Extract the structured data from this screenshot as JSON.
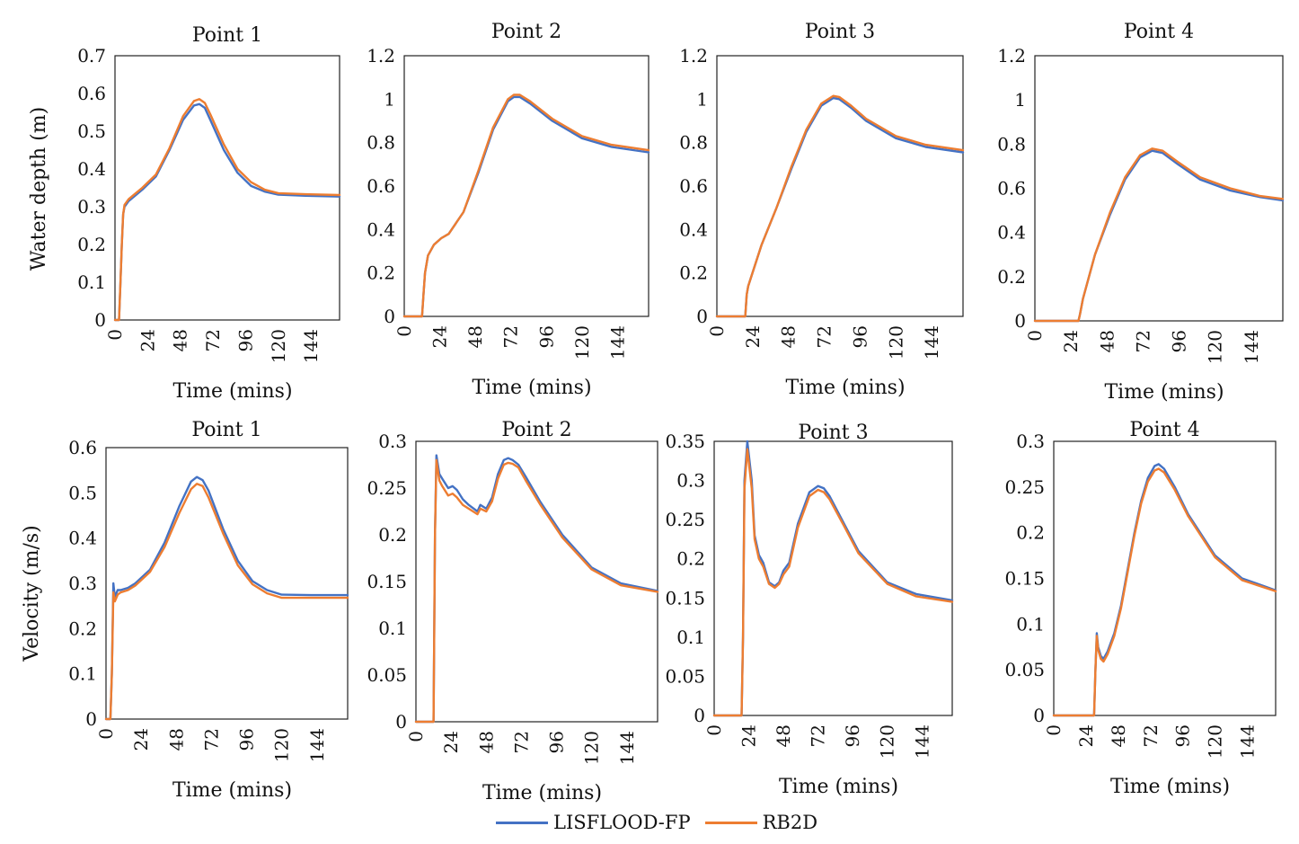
{
  "colors": {
    "lisflood": "#4472C4",
    "rb2d": "#ED7D31"
  },
  "legend": [
    {
      "name": "LISFLOOD-FP",
      "color": "#4472C4"
    },
    {
      "name": "RB2D",
      "color": "#ED7D31"
    }
  ],
  "row_labels": {
    "top": "Water depth (m)",
    "bottom": "Velocity (m/s)"
  },
  "chart_data": [
    {
      "type": "line",
      "title": "Point 1",
      "xlabel": "Time (mins)",
      "ylabel": "Water depth (m)",
      "xticks": [
        0,
        24,
        48,
        72,
        96,
        120,
        144
      ],
      "xlim": [
        0,
        165
      ],
      "yticks": [
        0,
        0.1,
        0.2,
        0.3,
        0.4,
        0.5,
        0.6,
        0.7
      ],
      "ytick_labels": [
        "0",
        "0.1",
        "0.2",
        "0.3",
        "0.4",
        "0.5",
        "0.6",
        "0.7"
      ],
      "ylim": [
        0,
        0.7
      ],
      "series": [
        {
          "name": "LISFLOOD-FP",
          "x": [
            0,
            3,
            4,
            5,
            6,
            7,
            10,
            15,
            20,
            30,
            40,
            50,
            58,
            62,
            66,
            70,
            80,
            90,
            100,
            110,
            120,
            140,
            165
          ],
          "y": [
            0,
            0,
            0.1,
            0.2,
            0.28,
            0.3,
            0.315,
            0.33,
            0.345,
            0.38,
            0.45,
            0.53,
            0.568,
            0.572,
            0.562,
            0.53,
            0.45,
            0.39,
            0.355,
            0.34,
            0.332,
            0.329,
            0.327
          ]
        },
        {
          "name": "RB2D",
          "x": [
            0,
            3,
            4,
            5,
            6,
            7,
            10,
            15,
            20,
            30,
            40,
            50,
            58,
            62,
            66,
            70,
            80,
            90,
            100,
            110,
            120,
            140,
            165
          ],
          "y": [
            0,
            0,
            0.1,
            0.2,
            0.28,
            0.305,
            0.32,
            0.335,
            0.35,
            0.385,
            0.455,
            0.54,
            0.58,
            0.585,
            0.575,
            0.545,
            0.465,
            0.4,
            0.365,
            0.345,
            0.336,
            0.333,
            0.331
          ]
        }
      ]
    },
    {
      "type": "line",
      "title": "Point 2",
      "xlabel": "Time (mins)",
      "ylabel": "",
      "xticks": [
        0,
        24,
        48,
        72,
        96,
        120,
        144
      ],
      "xlim": [
        0,
        165
      ],
      "yticks": [
        0,
        0.2,
        0.4,
        0.6,
        0.8,
        1,
        1.2
      ],
      "ytick_labels": [
        "0",
        "0.2",
        "0.4",
        "0.6",
        "0.8",
        "1",
        "1.2"
      ],
      "ylim": [
        0,
        1.2
      ],
      "series": [
        {
          "name": "LISFLOOD-FP",
          "x": [
            0,
            12,
            13,
            14,
            16,
            20,
            25,
            30,
            40,
            50,
            60,
            70,
            74,
            78,
            85,
            100,
            120,
            140,
            165
          ],
          "y": [
            0,
            0,
            0.1,
            0.2,
            0.28,
            0.33,
            0.36,
            0.38,
            0.48,
            0.66,
            0.86,
            0.99,
            1.01,
            1.01,
            0.98,
            0.9,
            0.82,
            0.78,
            0.755
          ]
        },
        {
          "name": "RB2D",
          "x": [
            0,
            12,
            13,
            14,
            16,
            20,
            25,
            30,
            40,
            50,
            60,
            70,
            74,
            78,
            85,
            100,
            120,
            140,
            165
          ],
          "y": [
            0,
            0,
            0.1,
            0.2,
            0.28,
            0.33,
            0.36,
            0.38,
            0.48,
            0.67,
            0.87,
            1.0,
            1.02,
            1.02,
            0.99,
            0.91,
            0.83,
            0.79,
            0.765
          ]
        }
      ]
    },
    {
      "type": "line",
      "title": "Point 3",
      "xlabel": "Time (mins)",
      "ylabel": "",
      "xticks": [
        0,
        24,
        48,
        72,
        96,
        120,
        144
      ],
      "xlim": [
        0,
        165
      ],
      "yticks": [
        0,
        0.2,
        0.4,
        0.6,
        0.8,
        1,
        1.2
      ],
      "ytick_labels": [
        "0",
        "0.2",
        "0.4",
        "0.6",
        "0.8",
        "1",
        "1.2"
      ],
      "ylim": [
        0,
        1.2
      ],
      "series": [
        {
          "name": "LISFLOOD-FP",
          "x": [
            0,
            19,
            20,
            21,
            30,
            40,
            50,
            60,
            70,
            78,
            82,
            90,
            100,
            120,
            140,
            165
          ],
          "y": [
            0,
            0,
            0.1,
            0.14,
            0.33,
            0.5,
            0.68,
            0.85,
            0.97,
            1.005,
            1.0,
            0.96,
            0.9,
            0.82,
            0.78,
            0.755
          ]
        },
        {
          "name": "RB2D",
          "x": [
            0,
            19,
            20,
            21,
            30,
            40,
            50,
            60,
            70,
            78,
            82,
            90,
            100,
            120,
            140,
            165
          ],
          "y": [
            0,
            0,
            0.1,
            0.14,
            0.33,
            0.5,
            0.69,
            0.86,
            0.98,
            1.015,
            1.01,
            0.97,
            0.91,
            0.83,
            0.79,
            0.765
          ]
        }
      ]
    },
    {
      "type": "line",
      "title": "Point 4",
      "xlabel": "Time (mins)",
      "ylabel": "",
      "xticks": [
        0,
        24,
        48,
        72,
        96,
        120,
        144
      ],
      "xlim": [
        0,
        165
      ],
      "yticks": [
        0,
        0.2,
        0.4,
        0.6,
        0.8,
        1,
        1.2
      ],
      "ytick_labels": [
        "0",
        "0.2",
        "0.4",
        "0.6",
        "0.8",
        "1",
        "1.2"
      ],
      "ylim": [
        0,
        1.2
      ],
      "series": [
        {
          "name": "LISFLOOD-FP",
          "x": [
            0,
            29,
            30,
            32,
            40,
            50,
            60,
            70,
            78,
            85,
            95,
            110,
            130,
            150,
            165
          ],
          "y": [
            0,
            0,
            0.03,
            0.1,
            0.3,
            0.48,
            0.64,
            0.74,
            0.77,
            0.76,
            0.71,
            0.64,
            0.59,
            0.56,
            0.545
          ]
        },
        {
          "name": "RB2D",
          "x": [
            0,
            29,
            30,
            32,
            40,
            50,
            60,
            70,
            78,
            85,
            95,
            110,
            130,
            150,
            165
          ],
          "y": [
            0,
            0,
            0.03,
            0.1,
            0.3,
            0.49,
            0.65,
            0.75,
            0.78,
            0.77,
            0.72,
            0.65,
            0.6,
            0.565,
            0.552
          ]
        }
      ]
    },
    {
      "type": "line",
      "title": "Point 1",
      "xlabel": "Time (mins)",
      "ylabel": "Velocity (m/s)",
      "xticks": [
        0,
        24,
        48,
        72,
        96,
        120,
        144
      ],
      "xlim": [
        0,
        165
      ],
      "yticks": [
        0,
        0.1,
        0.2,
        0.3,
        0.4,
        0.5,
        0.6
      ],
      "ytick_labels": [
        "0",
        "0.1",
        "0.2",
        "0.3",
        "0.4",
        "0.5",
        "0.6"
      ],
      "ylim": [
        0,
        0.6
      ],
      "series": [
        {
          "name": "LISFLOOD-FP",
          "x": [
            0,
            3,
            4,
            5,
            6,
            8,
            10,
            15,
            20,
            30,
            40,
            50,
            58,
            62,
            66,
            70,
            80,
            90,
            100,
            110,
            120,
            140,
            165
          ],
          "y": [
            0,
            0,
            0.1,
            0.3,
            0.27,
            0.285,
            0.285,
            0.29,
            0.3,
            0.33,
            0.39,
            0.47,
            0.525,
            0.535,
            0.528,
            0.505,
            0.42,
            0.35,
            0.305,
            0.285,
            0.275,
            0.274,
            0.274
          ]
        },
        {
          "name": "RB2D",
          "x": [
            0,
            3,
            4,
            5,
            6,
            8,
            10,
            15,
            20,
            30,
            40,
            50,
            58,
            62,
            66,
            70,
            80,
            90,
            100,
            110,
            120,
            140,
            165
          ],
          "y": [
            0,
            0,
            0.1,
            0.28,
            0.26,
            0.275,
            0.28,
            0.285,
            0.295,
            0.325,
            0.38,
            0.455,
            0.508,
            0.52,
            0.515,
            0.49,
            0.41,
            0.34,
            0.298,
            0.278,
            0.268,
            0.268,
            0.268
          ]
        }
      ]
    },
    {
      "type": "line",
      "title": "Point 2",
      "xlabel": "Time (mins)",
      "ylabel": "",
      "xticks": [
        0,
        24,
        48,
        72,
        96,
        120,
        144
      ],
      "xlim": [
        0,
        165
      ],
      "yticks": [
        0,
        0.05,
        0.1,
        0.15,
        0.2,
        0.25,
        0.3
      ],
      "ytick_labels": [
        "0",
        "0.05",
        "0.1",
        "0.15",
        "0.2",
        "0.25",
        "0.3"
      ],
      "ylim": [
        0,
        0.3
      ],
      "series": [
        {
          "name": "LISFLOOD-FP",
          "x": [
            0,
            12,
            13,
            14,
            16,
            18,
            22,
            25,
            28,
            32,
            36,
            42,
            44,
            48,
            52,
            56,
            60,
            63,
            66,
            70,
            75,
            85,
            100,
            120,
            140,
            165
          ],
          "y": [
            0,
            0,
            0.2,
            0.285,
            0.265,
            0.26,
            0.25,
            0.252,
            0.248,
            0.238,
            0.232,
            0.225,
            0.232,
            0.228,
            0.24,
            0.265,
            0.28,
            0.282,
            0.28,
            0.275,
            0.262,
            0.235,
            0.2,
            0.165,
            0.148,
            0.14
          ]
        },
        {
          "name": "RB2D",
          "x": [
            0,
            12,
            13,
            14,
            16,
            18,
            22,
            25,
            28,
            32,
            36,
            42,
            44,
            48,
            52,
            56,
            60,
            63,
            66,
            70,
            75,
            85,
            100,
            120,
            140,
            165
          ],
          "y": [
            0,
            0,
            0.2,
            0.28,
            0.258,
            0.252,
            0.242,
            0.244,
            0.24,
            0.232,
            0.228,
            0.222,
            0.228,
            0.225,
            0.236,
            0.26,
            0.275,
            0.277,
            0.276,
            0.272,
            0.258,
            0.232,
            0.197,
            0.163,
            0.146,
            0.139
          ]
        }
      ]
    },
    {
      "type": "line",
      "title": "Point 3",
      "xlabel": "Time (mins)",
      "ylabel": "",
      "xticks": [
        0,
        24,
        48,
        72,
        96,
        120,
        144
      ],
      "xlim": [
        0,
        165
      ],
      "yticks": [
        0,
        0.05,
        0.1,
        0.15,
        0.2,
        0.25,
        0.3,
        0.35
      ],
      "ytick_labels": [
        "0",
        "0.05",
        "0.1",
        "0.15",
        "0.2",
        "0.25",
        "0.3",
        "0.35"
      ],
      "ylim": [
        0,
        0.35
      ],
      "series": [
        {
          "name": "LISFLOOD-FP",
          "x": [
            0,
            19,
            20,
            21,
            23,
            26,
            28,
            31,
            34,
            38,
            42,
            45,
            48,
            52,
            58,
            66,
            72,
            76,
            80,
            90,
            100,
            120,
            140,
            165
          ],
          "y": [
            0,
            0,
            0.1,
            0.3,
            0.35,
            0.3,
            0.23,
            0.205,
            0.195,
            0.17,
            0.165,
            0.17,
            0.185,
            0.195,
            0.245,
            0.285,
            0.293,
            0.29,
            0.28,
            0.245,
            0.21,
            0.17,
            0.155,
            0.147
          ]
        },
        {
          "name": "RB2D",
          "x": [
            0,
            19,
            20,
            21,
            23,
            26,
            28,
            31,
            34,
            38,
            42,
            45,
            48,
            52,
            58,
            66,
            72,
            76,
            80,
            90,
            100,
            120,
            140,
            165
          ],
          "y": [
            0,
            0,
            0.1,
            0.29,
            0.34,
            0.29,
            0.225,
            0.2,
            0.19,
            0.168,
            0.163,
            0.168,
            0.18,
            0.19,
            0.24,
            0.28,
            0.288,
            0.285,
            0.276,
            0.242,
            0.207,
            0.168,
            0.152,
            0.145
          ]
        }
      ]
    },
    {
      "type": "line",
      "title": "Point 4",
      "xlabel": "Time (mins)",
      "ylabel": "",
      "xticks": [
        0,
        24,
        48,
        72,
        96,
        120,
        144
      ],
      "xlim": [
        0,
        165
      ],
      "yticks": [
        0,
        0.05,
        0.1,
        0.15,
        0.2,
        0.25,
        0.3
      ],
      "ytick_labels": [
        "0",
        "0.05",
        "0.1",
        "0.15",
        "0.2",
        "0.25",
        "0.3"
      ],
      "ylim": [
        0,
        0.3
      ],
      "series": [
        {
          "name": "LISFLOOD-FP",
          "x": [
            0,
            30,
            31,
            32,
            33,
            35,
            37,
            40,
            45,
            50,
            55,
            60,
            65,
            70,
            75,
            78,
            82,
            90,
            100,
            120,
            140,
            165
          ],
          "y": [
            0,
            0,
            0.05,
            0.09,
            0.075,
            0.065,
            0.062,
            0.07,
            0.09,
            0.12,
            0.16,
            0.2,
            0.235,
            0.26,
            0.273,
            0.275,
            0.27,
            0.25,
            0.22,
            0.175,
            0.15,
            0.137
          ]
        },
        {
          "name": "RB2D",
          "x": [
            0,
            30,
            31,
            32,
            33,
            35,
            37,
            40,
            45,
            50,
            55,
            60,
            65,
            70,
            75,
            78,
            82,
            90,
            100,
            120,
            140,
            165
          ],
          "y": [
            0,
            0,
            0.05,
            0.087,
            0.072,
            0.062,
            0.059,
            0.067,
            0.087,
            0.117,
            0.157,
            0.197,
            0.232,
            0.256,
            0.268,
            0.27,
            0.266,
            0.247,
            0.218,
            0.173,
            0.148,
            0.136
          ]
        }
      ]
    }
  ]
}
